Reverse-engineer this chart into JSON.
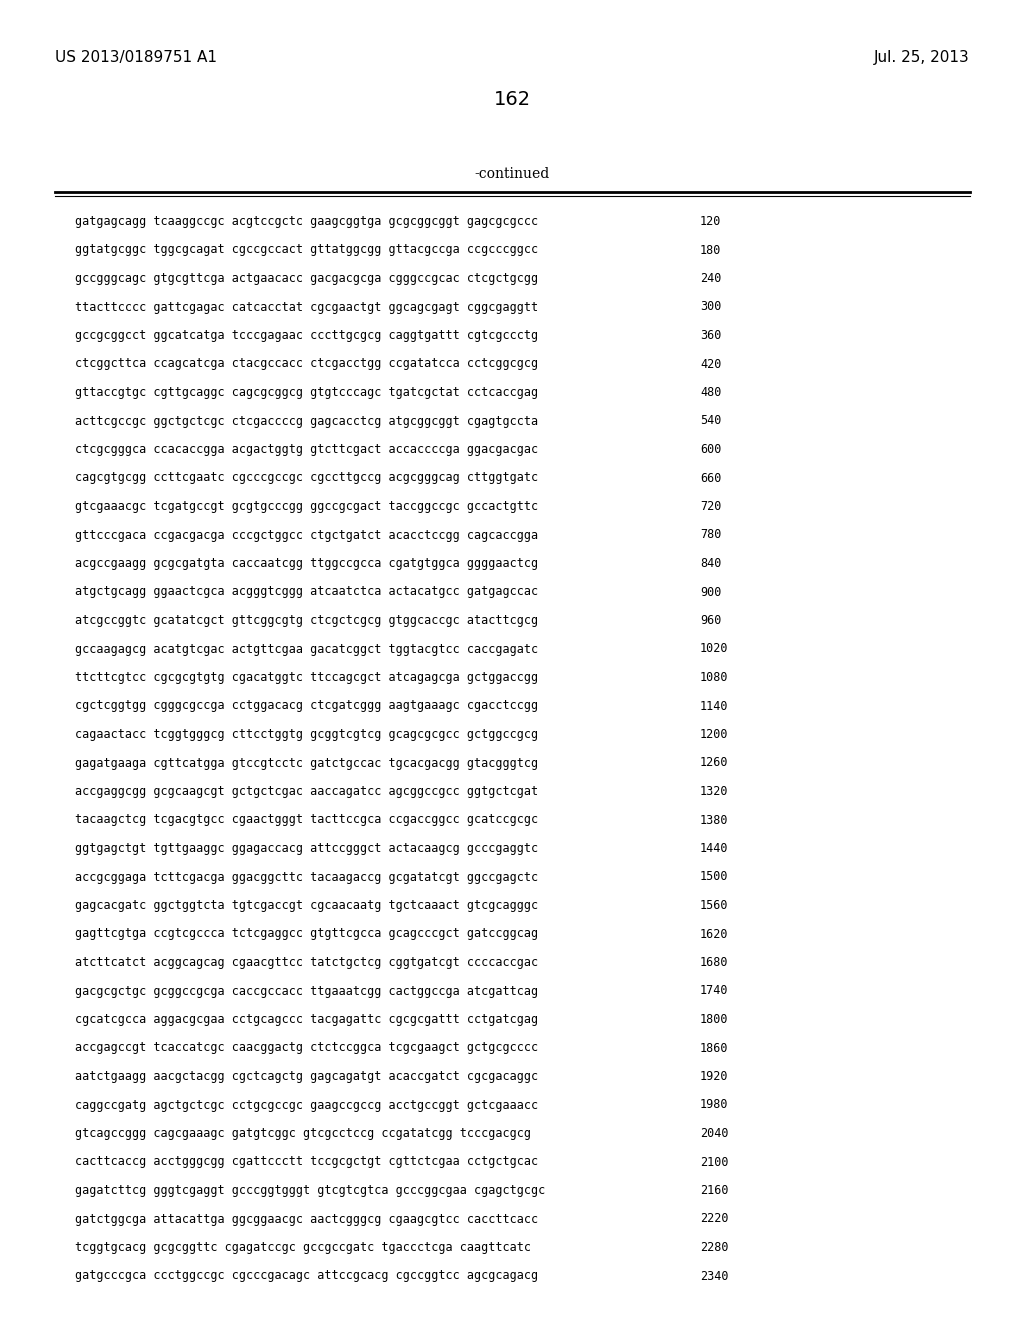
{
  "header_left": "US 2013/0189751 A1",
  "header_right": "Jul. 25, 2013",
  "page_number": "162",
  "continued_text": "-continued",
  "background_color": "#ffffff",
  "text_color": "#000000",
  "sequence_lines": [
    [
      "gatgagcagg tcaaggccgc acgtccgctc gaagcggtga gcgcggcggt gagcgcgccc",
      "120"
    ],
    [
      "ggtatgcggc tggcgcagat cgccgccact gttatggcgg gttacgccga ccgcccggcc",
      "180"
    ],
    [
      "gccgggcagc gtgcgttcga actgaacacc gacgacgcga cgggccgcac ctcgctgcgg",
      "240"
    ],
    [
      "ttacttcccc gattcgagac catcacctat cgcgaactgt ggcagcgagt cggcgaggtt",
      "300"
    ],
    [
      "gccgcggcct ggcatcatga tcccgagaac cccttgcgcg caggtgattt cgtcgccctg",
      "360"
    ],
    [
      "ctcggcttca ccagcatcga ctacgccacc ctcgacctgg ccgatatcca cctcggcgcg",
      "420"
    ],
    [
      "gttaccgtgc cgttgcaggc cagcgcggcg gtgtcccagc tgatcgctat cctcaccgag",
      "480"
    ],
    [
      "acttcgccgc ggctgctcgc ctcgaccccg gagcacctcg atgcggcggt cgagtgccta",
      "540"
    ],
    [
      "ctcgcgggca ccacaccgga acgactggtg gtcttcgact accaccccga ggacgacgac",
      "600"
    ],
    [
      "cagcgtgcgg ccttcgaatc cgcccgccgc cgccttgccg acgcgggcag cttggtgatc",
      "660"
    ],
    [
      "gtcgaaacgc tcgatgccgt gcgtgcccgg ggccgcgact taccggccgc gccactgttc",
      "720"
    ],
    [
      "gttcccgaca ccgacgacga cccgctggcc ctgctgatct acacctccgg cagcaccgga",
      "780"
    ],
    [
      "acgccgaagg gcgcgatgta caccaatcgg ttggccgcca cgatgtggca ggggaactcg",
      "840"
    ],
    [
      "atgctgcagg ggaactcgca acgggtcggg atcaatctca actacatgcc gatgagccac",
      "900"
    ],
    [
      "atcgccggtc gcatatcgct gttcggcgtg ctcgctcgcg gtggcaccgc atacttcgcg",
      "960"
    ],
    [
      "gccaagagcg acatgtcgac actgttcgaa gacatcggct tggtacgtcc caccgagatc",
      "1020"
    ],
    [
      "ttcttcgtcc cgcgcgtgtg cgacatggtc ttccagcgct atcagagcga gctggaccgg",
      "1080"
    ],
    [
      "cgctcggtgg cgggcgccga cctggacacg ctcgatcggg aagtgaaagc cgacctccgg",
      "1140"
    ],
    [
      "cagaactacc tcggtgggcg cttcctggtg gcggtcgtcg gcagcgcgcc gctggccgcg",
      "1200"
    ],
    [
      "gagatgaaga cgttcatgga gtccgtcctc gatctgccac tgcacgacgg gtacgggtcg",
      "1260"
    ],
    [
      "accgaggcgg gcgcaagcgt gctgctcgac aaccagatcc agcggccgcc ggtgctcgat",
      "1320"
    ],
    [
      "tacaagctcg tcgacgtgcc cgaactgggt tacttccgca ccgaccggcc gcatccgcgc",
      "1380"
    ],
    [
      "ggtgagctgt tgttgaaggc ggagaccacg attccgggct actacaagcg gcccgaggtc",
      "1440"
    ],
    [
      "accgcggaga tcttcgacga ggacggcttc tacaagaccg gcgatatcgt ggccgagctc",
      "1500"
    ],
    [
      "gagcacgatc ggctggtcta tgtcgaccgt cgcaacaatg tgctcaaact gtcgcagggc",
      "1560"
    ],
    [
      "gagttcgtga ccgtcgccca tctcgaggcc gtgttcgcca gcagcccgct gatccggcag",
      "1620"
    ],
    [
      "atcttcatct acggcagcag cgaacgttcc tatctgctcg cggtgatcgt ccccaccgac",
      "1680"
    ],
    [
      "gacgcgctgc gcggccgcga caccgccacc ttgaaatcgg cactggccga atcgattcag",
      "1740"
    ],
    [
      "cgcatcgcca aggacgcgaa cctgcagccc tacgagattc cgcgcgattt cctgatcgag",
      "1800"
    ],
    [
      "accgagccgt tcaccatcgc caacggactg ctctccggca tcgcgaagct gctgcgcccc",
      "1860"
    ],
    [
      "aatctgaagg aacgctacgg cgctcagctg gagcagatgt acaccgatct cgcgacaggc",
      "1920"
    ],
    [
      "caggccgatg agctgctcgc cctgcgccgc gaagccgccg acctgccggt gctcgaaacc",
      "1980"
    ],
    [
      "gtcagccggg cagcgaaagc gatgtcggc gtcgcctccg ccgatatcgg tcccgacgcg",
      "2040"
    ],
    [
      "cacttcaccg acctgggcgg cgattccctt tccgcgctgt cgttctcgaa cctgctgcac",
      "2100"
    ],
    [
      "gagatcttcg gggtcgaggt gcccggtgggt gtcgtcgtca gcccggcgaa cgagctgcgc",
      "2160"
    ],
    [
      "gatctggcga attacattga ggcggaacgc aactcgggcg cgaagcgtcc caccttcacc",
      "2220"
    ],
    [
      "tcggtgcacg gcgcggttc cgagatccgc gccgccgatc tgaccctcga caagttcatc",
      "2280"
    ],
    [
      "gatgcccgca ccctggccgc cgcccgacagc attccgcacg cgccggtcc agcgcagacg",
      "2340"
    ]
  ]
}
